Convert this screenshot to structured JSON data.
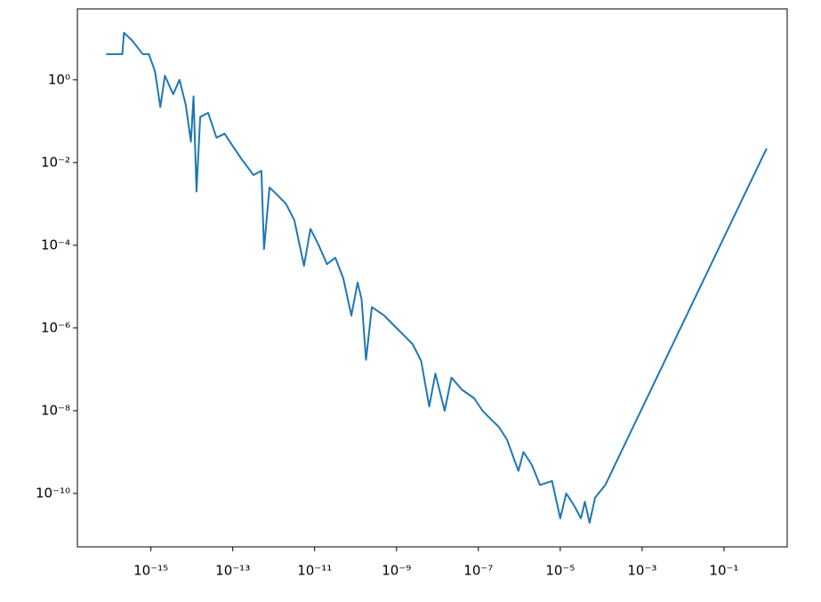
{
  "chart_data": {
    "type": "line",
    "xscale": "log",
    "yscale": "log",
    "grid": false,
    "xlim": [
      1.6e-17,
      3.5
    ],
    "ylim": [
      5.1e-12,
      52
    ],
    "xticks": [
      {
        "value": 1e-15,
        "label": "10⁻¹⁵"
      },
      {
        "value": 1e-13,
        "label": "10⁻¹³"
      },
      {
        "value": 1e-11,
        "label": "10⁻¹¹"
      },
      {
        "value": 1e-09,
        "label": "10⁻⁹"
      },
      {
        "value": 1e-07,
        "label": "10⁻⁷"
      },
      {
        "value": 1e-05,
        "label": "10⁻⁵"
      },
      {
        "value": 0.001,
        "label": "10⁻³"
      },
      {
        "value": 0.1,
        "label": "10⁻¹"
      }
    ],
    "yticks": [
      {
        "value": 1,
        "label": "10⁰"
      },
      {
        "value": 0.01,
        "label": "10⁻²"
      },
      {
        "value": 0.0001,
        "label": "10⁻⁴"
      },
      {
        "value": 1e-06,
        "label": "10⁻⁶"
      },
      {
        "value": 1e-08,
        "label": "10⁻⁸"
      },
      {
        "value": 1e-10,
        "label": "10⁻¹⁰"
      }
    ],
    "x": [
      8.1e-17,
      2e-16,
      2.2e-16,
      3.5e-16,
      6.3e-16,
      8.9e-16,
      1.26e-15,
      1.7e-15,
      2.2e-15,
      3.5e-15,
      5e-15,
      7.1e-15,
      9.5e-15,
      1.1e-14,
      1.3e-14,
      1.6e-14,
      2.5e-14,
      4e-14,
      6.3e-14,
      1e-13,
      1.6e-13,
      3.2e-13,
      5e-13,
      5.8e-13,
      7.9e-13,
      1.26e-12,
      2e-12,
      3.2e-12,
      5.5e-12,
      7.9e-12,
      1.26e-11,
      2e-11,
      3.2e-11,
      5e-11,
      7.9e-11,
      1.12e-10,
      1.4e-10,
      1.8e-10,
      2.5e-10,
      5e-10,
      1e-09,
      1.6e-09,
      2.5e-09,
      4e-09,
      6.3e-09,
      8.9e-09,
      1.5e-08,
      2.2e-08,
      4e-08,
      7.9e-08,
      1.26e-07,
      2e-07,
      3.2e-07,
      5e-07,
      9.5e-07,
      1.26e-06,
      2e-06,
      3.2e-06,
      6.3e-06,
      1e-05,
      1.4e-05,
      2.2e-05,
      3.2e-05,
      4e-05,
      5.2e-05,
      7.1e-05,
      0.000126,
      1.1
    ],
    "series": [
      {
        "color": "#1f77b4",
        "values": [
          4.2,
          4.2,
          13.8,
          8.9,
          4.2,
          4.2,
          1.6,
          0.22,
          1.26,
          0.45,
          1,
          0.25,
          0.032,
          0.4,
          0.002,
          0.126,
          0.16,
          0.04,
          0.05,
          0.025,
          0.0126,
          0.005,
          0.0063,
          8.1e-05,
          0.0025,
          0.0016,
          0.001,
          0.0004,
          3.2e-05,
          0.00025,
          0.0001,
          3.5e-05,
          5e-05,
          1.6e-05,
          2e-06,
          1.26e-05,
          5e-06,
          1.7e-07,
          3.2e-06,
          2e-06,
          1e-06,
          6.3e-07,
          4e-07,
          1.6e-07,
          1.26e-08,
          7.9e-08,
          1e-08,
          6.3e-08,
          3.2e-08,
          2e-08,
          1e-08,
          6.3e-09,
          4e-09,
          2e-09,
          3.5e-10,
          1e-09,
          5e-10,
          1.6e-10,
          2e-10,
          2.5e-11,
          1e-10,
          5e-11,
          2.5e-11,
          6.3e-11,
          1.95e-11,
          7.9e-11,
          1.6e-10,
          0.022
        ]
      }
    ]
  }
}
